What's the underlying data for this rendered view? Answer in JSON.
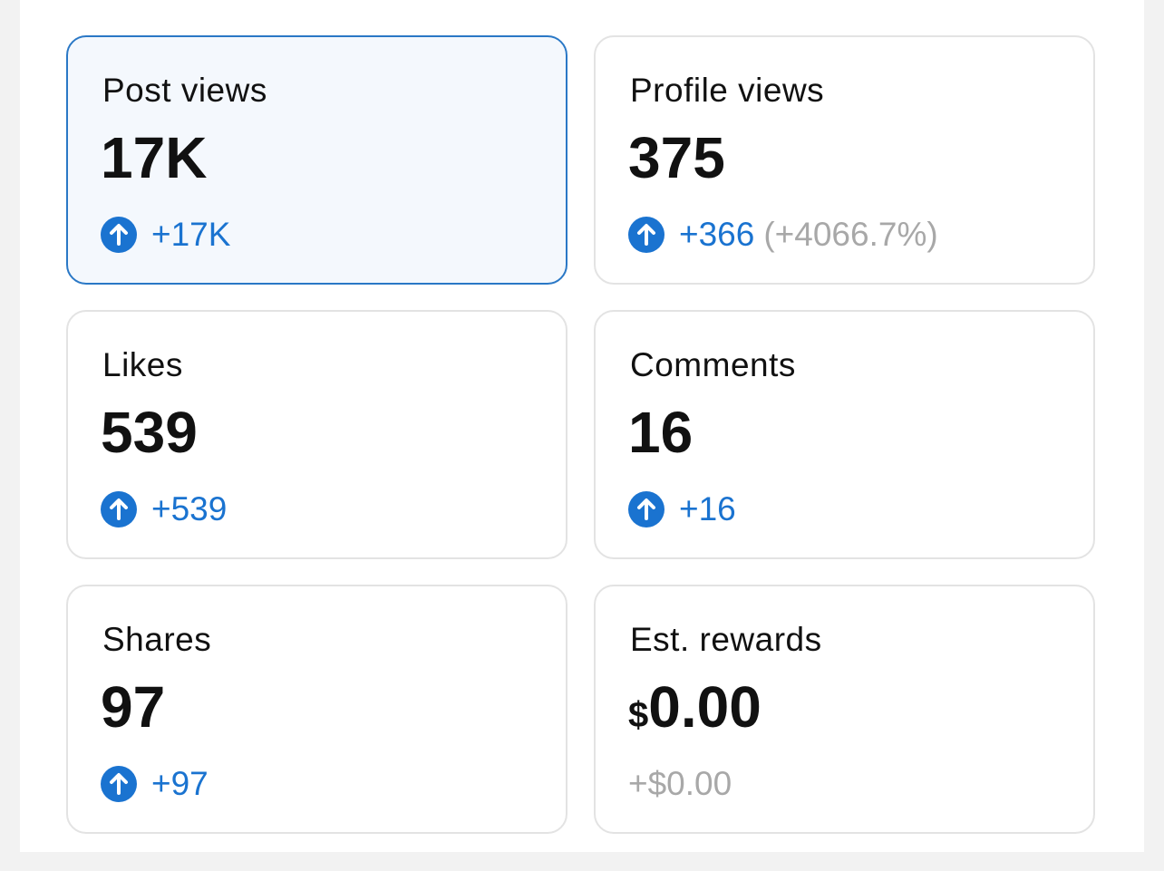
{
  "cards": [
    {
      "label": "Post views",
      "value": "17K",
      "change": "+17K",
      "trend": "up",
      "selected": true
    },
    {
      "label": "Profile views",
      "value": "375",
      "change": "+366",
      "percent": "(+4066.7%)",
      "trend": "up"
    },
    {
      "label": "Likes",
      "value": "539",
      "change": "+539",
      "trend": "up"
    },
    {
      "label": "Comments",
      "value": "16",
      "change": "+16",
      "trend": "up"
    },
    {
      "label": "Shares",
      "value": "97",
      "change": "+97",
      "trend": "up"
    },
    {
      "label": "Est. rewards",
      "currency": "$",
      "value": "0.00",
      "change": "+$0.00"
    }
  ]
}
